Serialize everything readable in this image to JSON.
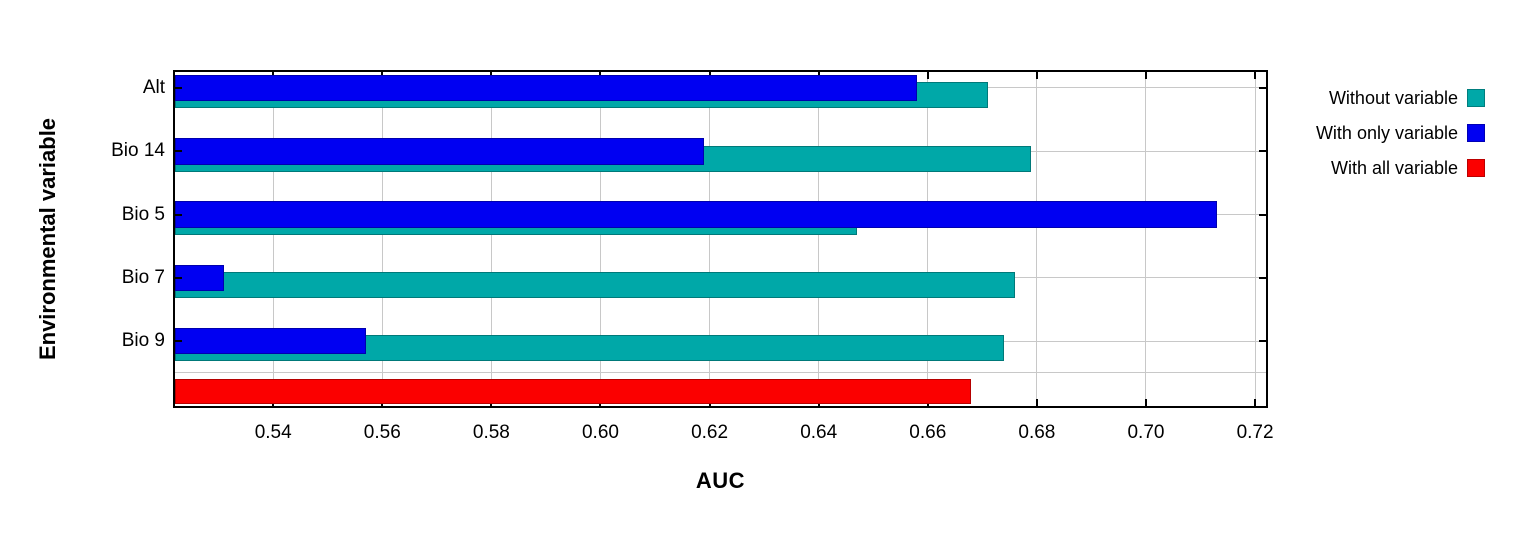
{
  "chart_data": {
    "type": "bar",
    "orientation": "horizontal",
    "title": "",
    "xlabel": "AUC",
    "ylabel": "Environmental variable",
    "xlim": [
      0.522,
      0.722
    ],
    "xtick_labels": [
      "0.54",
      "0.56",
      "0.58",
      "0.60",
      "0.62",
      "0.64",
      "0.66",
      "0.68",
      "0.70",
      "0.72"
    ],
    "grid": true,
    "legend_position": "right-top",
    "categories": [
      "Alt",
      "Bio 14",
      "Bio 5",
      "Bio 7",
      "Bio 9"
    ],
    "series": [
      {
        "name": "Without variable",
        "color": "#00a8a8",
        "values": [
          0.671,
          0.679,
          0.647,
          0.676,
          0.674
        ]
      },
      {
        "name": "With only variable",
        "color": "#0000f2",
        "values": [
          0.658,
          0.619,
          0.713,
          0.531,
          0.557
        ]
      },
      {
        "name": "With all variable",
        "color": "#fb0000",
        "values": [
          0.668
        ]
      }
    ],
    "colors": {
      "grid": "#c8c8c8",
      "axis": "#000000",
      "background": "#ffffff",
      "text": "#000000"
    }
  }
}
